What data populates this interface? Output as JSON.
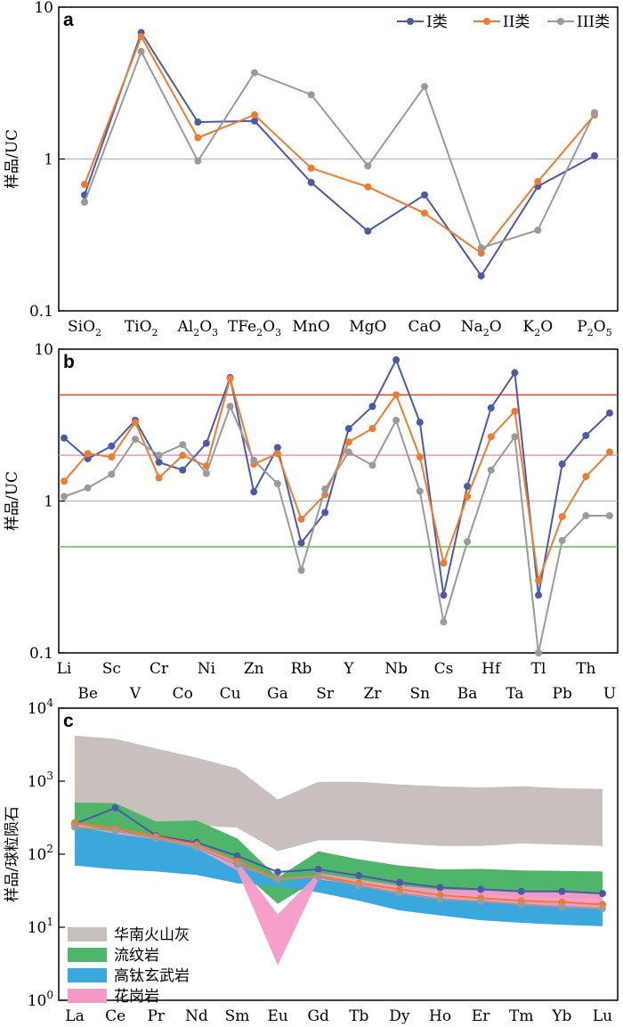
{
  "colors": {
    "class1": "#4a5aa8",
    "class2": "#f07b2c",
    "class3": "#9a9a9a",
    "refline_gray": "#bdbdbd",
    "refline_red": "#e8402e",
    "refline_pink": "#f78fc6",
    "refline_green": "#6cc04a",
    "volcanic_ash": "#c7c0bd",
    "rhyolite": "#4fb56a",
    "high_ti_basalt": "#3aa8dc",
    "granite": "#f59ac7"
  },
  "chart_data": [
    {
      "panel_label": "a",
      "type": "line",
      "yscale": "log",
      "ylabel": "样品/UC",
      "ylim": [
        0.1,
        10
      ],
      "y_ticks": [
        "0.1",
        "1",
        "10"
      ],
      "categories": [
        "SiO2",
        "TiO2",
        "Al2O3",
        "TFe2O3",
        "MnO",
        "MgO",
        "CaO",
        "Na2O",
        "K2O",
        "P2O5"
      ],
      "category_labels": [
        {
          "base": "SiO",
          "sub": "2",
          "tail": ""
        },
        {
          "base": "TiO",
          "sub": "2",
          "tail": ""
        },
        {
          "base": "Al",
          "sub": "2",
          "tail": "O",
          "sub2": "3"
        },
        {
          "base": "TFe",
          "sub": "2",
          "tail": "O",
          "sub2": "3"
        },
        {
          "base": "MnO",
          "sub": "",
          "tail": ""
        },
        {
          "base": "MgO",
          "sub": "",
          "tail": ""
        },
        {
          "base": "CaO",
          "sub": "",
          "tail": ""
        },
        {
          "base": "Na",
          "sub": "2",
          "tail": "O"
        },
        {
          "base": "K",
          "sub": "2",
          "tail": "O"
        },
        {
          "base": "P",
          "sub": "2",
          "tail": "O",
          "sub2": "5"
        }
      ],
      "legend_position": "top-right",
      "ref_lines": [
        {
          "y": 1,
          "color_key": "refline_gray"
        }
      ],
      "series": [
        {
          "name": "I类",
          "color_key": "class1",
          "values": [
            0.58,
            6.8,
            1.75,
            1.78,
            0.7,
            0.335,
            0.58,
            0.17,
            0.66,
            1.05
          ]
        },
        {
          "name": "II类",
          "color_key": "class2",
          "values": [
            0.68,
            6.4,
            1.38,
            1.95,
            0.87,
            0.655,
            0.44,
            0.24,
            0.71,
            1.95
          ]
        },
        {
          "name": "III类",
          "color_key": "class3",
          "values": [
            0.52,
            5.1,
            0.97,
            3.7,
            2.65,
            0.9,
            3.0,
            0.26,
            0.34,
            2.02
          ]
        }
      ]
    },
    {
      "panel_label": "b",
      "type": "line",
      "yscale": "log",
      "ylabel": "样品/UC",
      "ylim": [
        0.1,
        10
      ],
      "y_ticks": [
        "0.1",
        "1",
        "10"
      ],
      "categories": [
        "Li",
        "Be",
        "Sc",
        "V",
        "Cr",
        "Co",
        "Ni",
        "Cu",
        "Zn",
        "Ga",
        "Rb",
        "Sr",
        "Y",
        "Zr",
        "Nb",
        "Sn",
        "Cs",
        "Ba",
        "Hf",
        "Ta",
        "Tl",
        "Pb",
        "Th",
        "U"
      ],
      "ref_lines": [
        {
          "y": 5,
          "color_key": "refline_red"
        },
        {
          "y": 2,
          "color_key": "refline_pink"
        },
        {
          "y": 1,
          "color_key": "refline_gray"
        },
        {
          "y": 0.5,
          "color_key": "refline_green"
        }
      ],
      "series": [
        {
          "name": "I类",
          "color_key": "class1",
          "values": [
            2.6,
            1.9,
            2.3,
            3.4,
            1.8,
            1.6,
            2.4,
            6.5,
            1.15,
            2.25,
            0.53,
            0.84,
            3.0,
            4.2,
            8.5,
            3.3,
            0.24,
            1.25,
            4.1,
            7.0,
            0.24,
            1.75,
            2.7,
            3.8
          ]
        },
        {
          "name": "II类",
          "color_key": "class2",
          "values": [
            1.35,
            2.05,
            1.95,
            3.3,
            1.42,
            2.0,
            1.7,
            6.4,
            1.75,
            2.05,
            0.76,
            1.1,
            2.45,
            3.0,
            5.0,
            1.95,
            0.39,
            1.07,
            2.65,
            3.9,
            0.3,
            0.79,
            1.45,
            2.1
          ]
        },
        {
          "name": "III类",
          "color_key": "class3",
          "values": [
            1.07,
            1.22,
            1.5,
            2.55,
            2.0,
            2.35,
            1.52,
            4.2,
            1.85,
            1.3,
            0.35,
            1.2,
            2.1,
            1.72,
            3.4,
            1.16,
            0.16,
            0.54,
            1.6,
            2.65,
            0.1,
            0.55,
            0.8,
            0.8
          ]
        }
      ]
    },
    {
      "panel_label": "c",
      "type": "area",
      "yscale": "log",
      "ylabel": "样品/球粒陨石",
      "ylim": [
        1,
        10000
      ],
      "y_ticks": [
        {
          "base": "10",
          "exp": "0"
        },
        {
          "base": "10",
          "exp": "1"
        },
        {
          "base": "10",
          "exp": "2"
        },
        {
          "base": "10",
          "exp": "3"
        },
        {
          "base": "10",
          "exp": "4"
        }
      ],
      "categories": [
        "La",
        "Ce",
        "Pr",
        "Nd",
        "Sm",
        "Eu",
        "Gd",
        "Tb",
        "Dy",
        "Ho",
        "Er",
        "Tm",
        "Yb",
        "Lu"
      ],
      "legend_position": "bottom-left",
      "bands": [
        {
          "name": "华南火山灰",
          "color_key": "volcanic_ash",
          "upper": [
            4200,
            3800,
            2800,
            2100,
            1500,
            560,
            980,
            980,
            900,
            850,
            820,
            850,
            800,
            780
          ],
          "lower": [
            330,
            300,
            270,
            250,
            230,
            110,
            155,
            155,
            140,
            130,
            130,
            140,
            135,
            130
          ]
        },
        {
          "name": "流纹岩",
          "color_key": "rhyolite",
          "upper": [
            510,
            500,
            280,
            290,
            165,
            48,
            110,
            85,
            70,
            62,
            63,
            60,
            59,
            58
          ],
          "lower": [
            180,
            170,
            135,
            120,
            65,
            21,
            46,
            37,
            32,
            29,
            28,
            26,
            25,
            25
          ]
        },
        {
          "name": "高钛玄武岩",
          "color_key": "high_ti_basalt",
          "upper": [
            220,
            200,
            170,
            135,
            85,
            40,
            52,
            40,
            32,
            26,
            24,
            23,
            21,
            20
          ],
          "lower": [
            70,
            62,
            58,
            52,
            40,
            36,
            30,
            23,
            17,
            14.5,
            12.5,
            11.5,
            10.8,
            10.3
          ]
        },
        {
          "name": "花岗岩",
          "color_key": "granite",
          "upper": [
            260,
            210,
            175,
            140,
            82,
            15,
            55,
            45,
            37,
            33,
            32,
            31,
            30,
            30
          ],
          "lower": [
            240,
            190,
            160,
            120,
            60,
            3,
            45,
            38,
            30,
            25,
            23,
            21,
            19,
            18
          ]
        }
      ],
      "series": [
        {
          "name": "I类",
          "color_key": "class1",
          "values": [
            260,
            430,
            180,
            145,
            95,
            57,
            62,
            51,
            41,
            35,
            33,
            31,
            31,
            29
          ]
        },
        {
          "name": "II类",
          "color_key": "class2",
          "values": [
            270,
            225,
            175,
            135,
            80,
            46,
            51,
            40,
            33,
            27.5,
            25,
            23,
            22,
            20.5
          ]
        },
        {
          "name": "III类",
          "color_key": "class3",
          "values": [
            235,
            210,
            165,
            125,
            72,
            45,
            49,
            37,
            29,
            24,
            22.5,
            20.5,
            19,
            18
          ]
        }
      ]
    }
  ]
}
